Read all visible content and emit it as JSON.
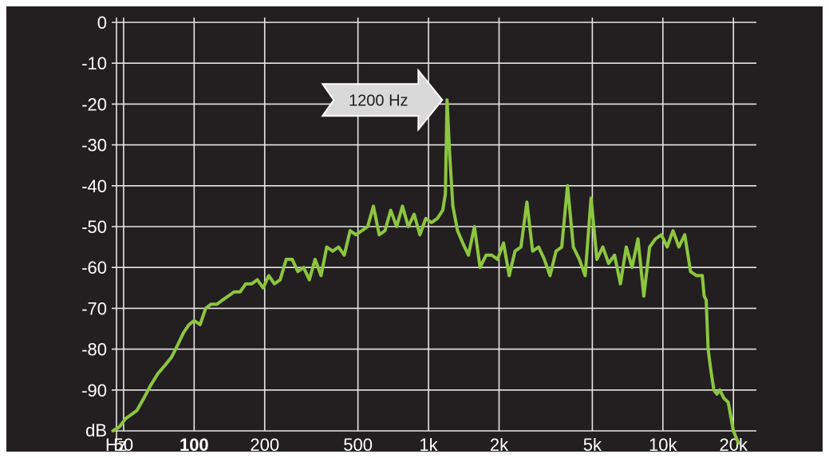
{
  "chart_data": {
    "type": "line",
    "ylabel": "dB",
    "xlabel": "Hz",
    "xscale": "log",
    "xlim": [
      40,
      21000
    ],
    "ylim": [
      -100,
      0
    ],
    "grid": true,
    "yticks": [
      {
        "value": 0,
        "label": "0"
      },
      {
        "value": -10,
        "label": "-10"
      },
      {
        "value": -20,
        "label": "-20"
      },
      {
        "value": -30,
        "label": "-30"
      },
      {
        "value": -40,
        "label": "-40"
      },
      {
        "value": -50,
        "label": "-50"
      },
      {
        "value": -60,
        "label": "-60"
      },
      {
        "value": -70,
        "label": "-70"
      },
      {
        "value": -80,
        "label": "-80"
      },
      {
        "value": -90,
        "label": "-90"
      }
    ],
    "xticks": [
      {
        "value": 50,
        "label": "50",
        "bold": false
      },
      {
        "value": 100,
        "label": "100",
        "bold": true
      },
      {
        "value": 200,
        "label": "200",
        "bold": false
      },
      {
        "value": 500,
        "label": "500",
        "bold": false
      },
      {
        "value": 1000,
        "label": "1k",
        "bold": false
      },
      {
        "value": 2000,
        "label": "2k",
        "bold": false
      },
      {
        "value": 5000,
        "label": "5k",
        "bold": false
      },
      {
        "value": 10000,
        "label": "10k",
        "bold": false
      },
      {
        "value": 20000,
        "label": "20k",
        "bold": false
      }
    ],
    "annotation": {
      "text": "1200 Hz",
      "x": 1200,
      "y": -19
    },
    "line_color": "#8dc63f",
    "series": [
      {
        "x": [
          45,
          48,
          51,
          54,
          57,
          61,
          65,
          70,
          75,
          80,
          85,
          90,
          95,
          100,
          106,
          112,
          118,
          125,
          132,
          140,
          148,
          157,
          166,
          176,
          186,
          197,
          208,
          220,
          233,
          247,
          262,
          277,
          293,
          310,
          328,
          348,
          368,
          390,
          413,
          437,
          463,
          490,
          519,
          550,
          582,
          616,
          652,
          690,
          731,
          774,
          820,
          868,
          919,
          973,
          1030,
          1090,
          1150,
          1180,
          1200,
          1230,
          1270,
          1330,
          1400,
          1480,
          1570,
          1660,
          1760,
          1860,
          1970,
          2090,
          2210,
          2340,
          2480,
          2630,
          2780,
          2950,
          3120,
          3300,
          3500,
          3700,
          3920,
          4150,
          4400,
          4660,
          4940,
          5230,
          5540,
          5870,
          6220,
          6590,
          6980,
          7390,
          7830,
          8290,
          8780,
          9300,
          9850,
          10430,
          11050,
          11700,
          12400,
          13130,
          13900,
          14730,
          15000,
          15300,
          15600,
          16000,
          16500,
          17000,
          17500,
          18200,
          19000,
          20000,
          21000
        ],
        "y": [
          -100,
          -99,
          -97,
          -96,
          -95,
          -92,
          -89,
          -86,
          -84,
          -82,
          -79,
          -76,
          -74,
          -73,
          -74,
          -70,
          -69,
          -69,
          -68,
          -67,
          -66,
          -66,
          -64,
          -64,
          -63,
          -65,
          -62,
          -64,
          -63,
          -58,
          -58,
          -61,
          -60,
          -63,
          -58,
          -62,
          -55,
          -56,
          -55,
          -57,
          -51,
          -52,
          -51,
          -50,
          -45,
          -52,
          -51,
          -46,
          -50,
          -45,
          -50,
          -47,
          -52,
          -48,
          -49,
          -48,
          -46,
          -42,
          -19,
          -32,
          -45,
          -51,
          -54,
          -57,
          -50,
          -60,
          -57,
          -57,
          -58,
          -54,
          -62,
          -56,
          -55,
          -44,
          -56,
          -55,
          -58,
          -62,
          -56,
          -55,
          -40,
          -55,
          -58,
          -62,
          -43,
          -58,
          -55,
          -59,
          -57,
          -64,
          -55,
          -60,
          -53,
          -67,
          -55,
          -53,
          -52,
          -55,
          -51,
          -55,
          -52,
          -61,
          -62,
          -62,
          -67,
          -68,
          -80,
          -85,
          -90,
          -91,
          -90,
          -92,
          -93,
          -100,
          -103
        ]
      }
    ]
  }
}
